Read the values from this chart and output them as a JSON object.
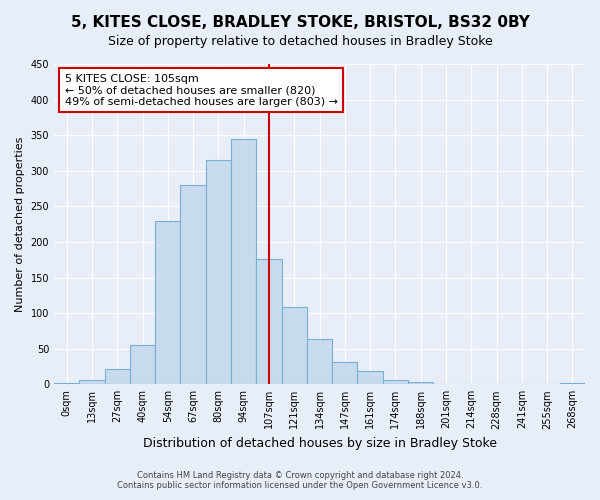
{
  "title": "5, KITES CLOSE, BRADLEY STOKE, BRISTOL, BS32 0BY",
  "subtitle": "Size of property relative to detached houses in Bradley Stoke",
  "xlabel": "Distribution of detached houses by size in Bradley Stoke",
  "ylabel": "Number of detached properties",
  "footer_line1": "Contains HM Land Registry data © Crown copyright and database right 2024.",
  "footer_line2": "Contains public sector information licensed under the Open Government Licence v3.0.",
  "bar_labels": [
    "0sqm",
    "13sqm",
    "27sqm",
    "40sqm",
    "54sqm",
    "67sqm",
    "80sqm",
    "94sqm",
    "107sqm",
    "121sqm",
    "134sqm",
    "147sqm",
    "161sqm",
    "174sqm",
    "188sqm",
    "201sqm",
    "214sqm",
    "228sqm",
    "241sqm",
    "255sqm",
    "268sqm"
  ],
  "bar_values": [
    2,
    6,
    22,
    55,
    230,
    280,
    315,
    345,
    176,
    108,
    63,
    32,
    19,
    6,
    3,
    0,
    0,
    0,
    0,
    0,
    2
  ],
  "bar_color": "#c8daee",
  "bar_edge_color": "#7aafd4",
  "vline_x_index": 8,
  "vline_color": "#cc0000",
  "ylim": [
    0,
    450
  ],
  "yticks": [
    0,
    50,
    100,
    150,
    200,
    250,
    300,
    350,
    400,
    450
  ],
  "annotation_title": "5 KITES CLOSE: 105sqm",
  "annotation_line1": "← 50% of detached houses are smaller (820)",
  "annotation_line2": "49% of semi-detached houses are larger (803) →",
  "annotation_box_color": "#ffffff",
  "annotation_box_edge": "#cc0000",
  "background_color": "#e8eef8",
  "grid_color": "#ffffff",
  "title_fontsize": 11,
  "subtitle_fontsize": 9,
  "ylabel_fontsize": 8,
  "xlabel_fontsize": 9,
  "tick_fontsize": 7,
  "footer_fontsize": 6
}
